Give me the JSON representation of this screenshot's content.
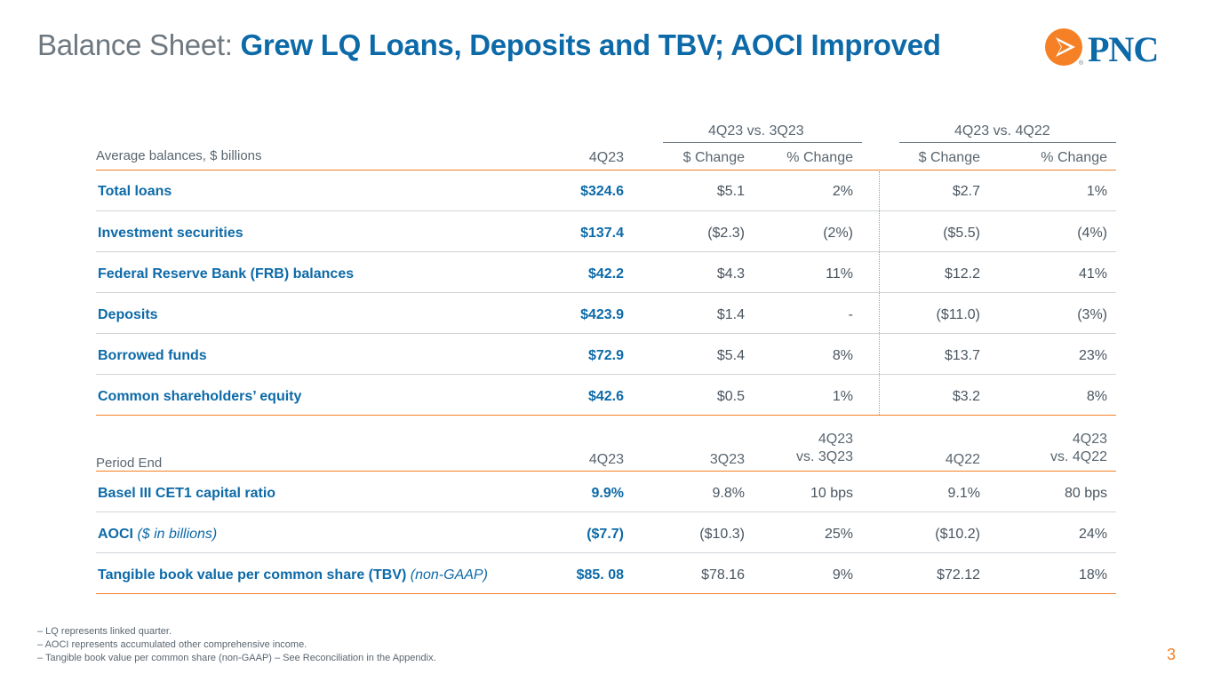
{
  "title": {
    "lead": "Balance Sheet:",
    "main": "Grew LQ Loans, Deposits and TBV; AOCI Improved"
  },
  "logo": {
    "text": "PNC",
    "reg": "®"
  },
  "avg_table": {
    "group1": "4Q23 vs. 3Q23",
    "group2": "4Q23 vs. 4Q22",
    "caption": "Average balances, $ billions",
    "col_4q": "4Q23",
    "col_dc1": "$ Change",
    "col_pc1": "% Change",
    "col_dc2": "$ Change",
    "col_pc2": "% Change",
    "rows": [
      {
        "label": "Total loans",
        "q": "$324.6",
        "dc1": "$5.1",
        "pc1": "2%",
        "dc2": "$2.7",
        "pc2": "1%"
      },
      {
        "label": "Investment securities",
        "q": "$137.4",
        "dc1": "($2.3)",
        "pc1": "(2%)",
        "dc2": "($5.5)",
        "pc2": "(4%)"
      },
      {
        "label": "Federal Reserve Bank (FRB) balances",
        "q": "$42.2",
        "dc1": "$4.3",
        "pc1": "11%",
        "dc2": "$12.2",
        "pc2": "41%"
      },
      {
        "label": "Deposits",
        "q": "$423.9",
        "dc1": "$1.4",
        "pc1": "-",
        "dc2": "($11.0)",
        "pc2": "(3%)"
      },
      {
        "label": "Borrowed funds",
        "q": "$72.9",
        "dc1": "$5.4",
        "pc1": "8%",
        "dc2": "$13.7",
        "pc2": "23%"
      },
      {
        "label": "Common shareholders’ equity",
        "q": "$42.6",
        "dc1": "$0.5",
        "pc1": "1%",
        "dc2": "$3.2",
        "pc2": "8%"
      }
    ]
  },
  "period_table": {
    "caption": "Period End",
    "col_4q": "4Q23",
    "col_3q": "3Q23",
    "col_v3_l1": "4Q23",
    "col_v3_l2": "vs. 3Q23",
    "col_4q22": "4Q22",
    "col_v4_l1": "4Q23",
    "col_v4_l2": "vs. 4Q22",
    "rows": [
      {
        "label": "Basel III CET1 capital ratio",
        "suffix": "",
        "q": "9.9%",
        "c2": "9.8%",
        "c3": "10 bps",
        "c4": "9.1%",
        "c5": "80 bps"
      },
      {
        "label": "AOCI",
        "suffix": " ($ in billions)",
        "q": "($7.7)",
        "c2": "($10.3)",
        "c3": "25%",
        "c4": "($10.2)",
        "c5": "24%"
      },
      {
        "label": "Tangible book value per common share (TBV)",
        "suffix": " (non-GAAP)",
        "q": "$85. 08",
        "c2": "$78.16",
        "c3": "9%",
        "c4": "$72.12",
        "c5": "18%"
      }
    ]
  },
  "footnotes": [
    "‒  LQ represents linked quarter.",
    "‒  AOCI represents accumulated other comprehensive income.",
    "‒  Tangible book value per common share (non-GAAP) – See Reconciliation in the Appendix."
  ],
  "page_number": "3",
  "colors": {
    "brand_blue": "#0d6aa8",
    "accent_orange": "#f58025",
    "gray_text": "#6e7880"
  }
}
